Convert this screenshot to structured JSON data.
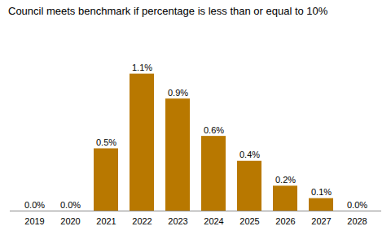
{
  "chart_data": {
    "type": "bar",
    "title": "Council meets benchmark if percentage is less than or equal to 10%",
    "categories": [
      "2019",
      "2020",
      "2021",
      "2022",
      "2023",
      "2024",
      "2025",
      "2026",
      "2027",
      "2028"
    ],
    "values": [
      0.0,
      0.0,
      0.5,
      1.1,
      0.9,
      0.6,
      0.4,
      0.2,
      0.1,
      0.0
    ],
    "value_labels": [
      "0.0%",
      "0.0%",
      "0.5%",
      "1.1%",
      "0.9%",
      "0.6%",
      "0.4%",
      "0.2%",
      "0.1%",
      "0.0%"
    ],
    "color": "#B87800",
    "ylim": [
      0,
      1.45
    ],
    "grid": false,
    "data_labels": true,
    "tick_labels": "x"
  }
}
